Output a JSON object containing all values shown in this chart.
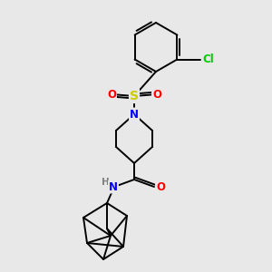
{
  "background_color": "#e8e8e8",
  "bond_color": "#000000",
  "atom_colors": {
    "N": "#0000ff",
    "O": "#ff0000",
    "S": "#cccc00",
    "Cl": "#00cc00",
    "C": "#000000",
    "H": "#808080"
  },
  "figsize": [
    3.0,
    3.0
  ],
  "dpi": 100,
  "lw": 1.4
}
